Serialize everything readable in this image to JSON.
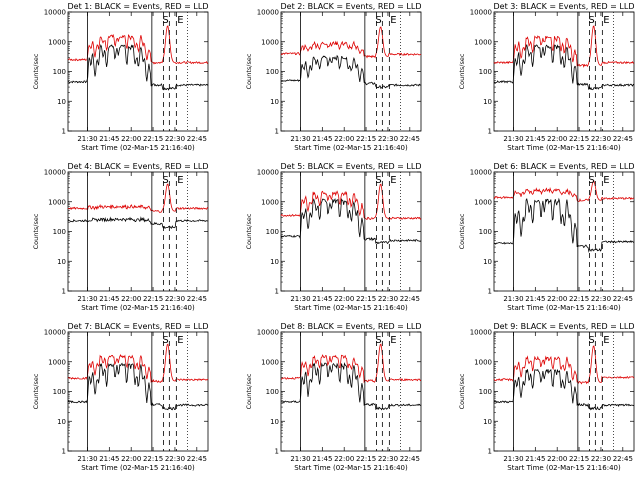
{
  "chart_data": {
    "type": "line",
    "grid_layout": "3x3",
    "yscale": "log",
    "ylim": [
      1,
      10000
    ],
    "yticks": [
      "10000",
      "1000",
      "100",
      "10",
      "1"
    ],
    "ylabel": "Counts/sec",
    "xticks": [
      "21:30",
      "21:45",
      "22:00",
      "22:15",
      "22:30",
      "22:45"
    ],
    "xlabel": "Start Time (02-Mar-15 21:16:40)",
    "colors": {
      "black_series": "#000000",
      "red_series": "#dd0000"
    },
    "markers": {
      "S": "S",
      "E": "E"
    },
    "panels": [
      {
        "title": "Det 1: BLACK = Events, RED = LLD",
        "black_base": 45,
        "black_peak": 700,
        "red_base": 250,
        "red_peak": 1500,
        "red_flare": 3500,
        "black_post": 35,
        "red_post": 200
      },
      {
        "title": "Det 2: BLACK = Events, RED = LLD",
        "black_base": 50,
        "black_peak": 300,
        "red_base": 400,
        "red_peak": 900,
        "red_flare": 3200,
        "black_post": 35,
        "red_post": 380
      },
      {
        "title": "Det 3: BLACK = Events, RED = LLD",
        "black_base": 45,
        "black_peak": 700,
        "red_base": 200,
        "red_peak": 1400,
        "red_flare": 3500,
        "black_post": 35,
        "red_post": 200
      },
      {
        "title": "Det 4: BLACK = Events, RED = LLD",
        "black_base": 230,
        "black_peak": 260,
        "red_base": 600,
        "red_peak": 700,
        "red_flare": 4000,
        "black_post": 230,
        "red_post": 600
      },
      {
        "title": "Det 5: BLACK = Events, RED = LLD",
        "black_base": 70,
        "black_peak": 1100,
        "red_base": 350,
        "red_peak": 2000,
        "red_flare": 4000,
        "black_post": 50,
        "red_post": 280
      },
      {
        "title": "Det 6: BLACK = Events, RED = LLD",
        "black_base": 40,
        "black_peak": 1100,
        "red_base": 1400,
        "red_peak": 2500,
        "red_flare": 5000,
        "black_post": 45,
        "red_post": 1300
      },
      {
        "title": "Det 7: BLACK = Events, RED = LLD",
        "black_base": 45,
        "black_peak": 800,
        "red_base": 280,
        "red_peak": 1500,
        "red_flare": 4000,
        "black_post": 35,
        "red_post": 250
      },
      {
        "title": "Det 8: BLACK = Events, RED = LLD",
        "black_base": 45,
        "black_peak": 800,
        "red_base": 280,
        "red_peak": 1500,
        "red_flare": 4000,
        "black_post": 35,
        "red_post": 250
      },
      {
        "title": "Det 9: BLACK = Events, RED = LLD",
        "black_base": 45,
        "black_peak": 500,
        "red_base": 250,
        "red_peak": 1300,
        "red_flare": 3500,
        "black_post": 35,
        "red_post": 300
      }
    ]
  }
}
